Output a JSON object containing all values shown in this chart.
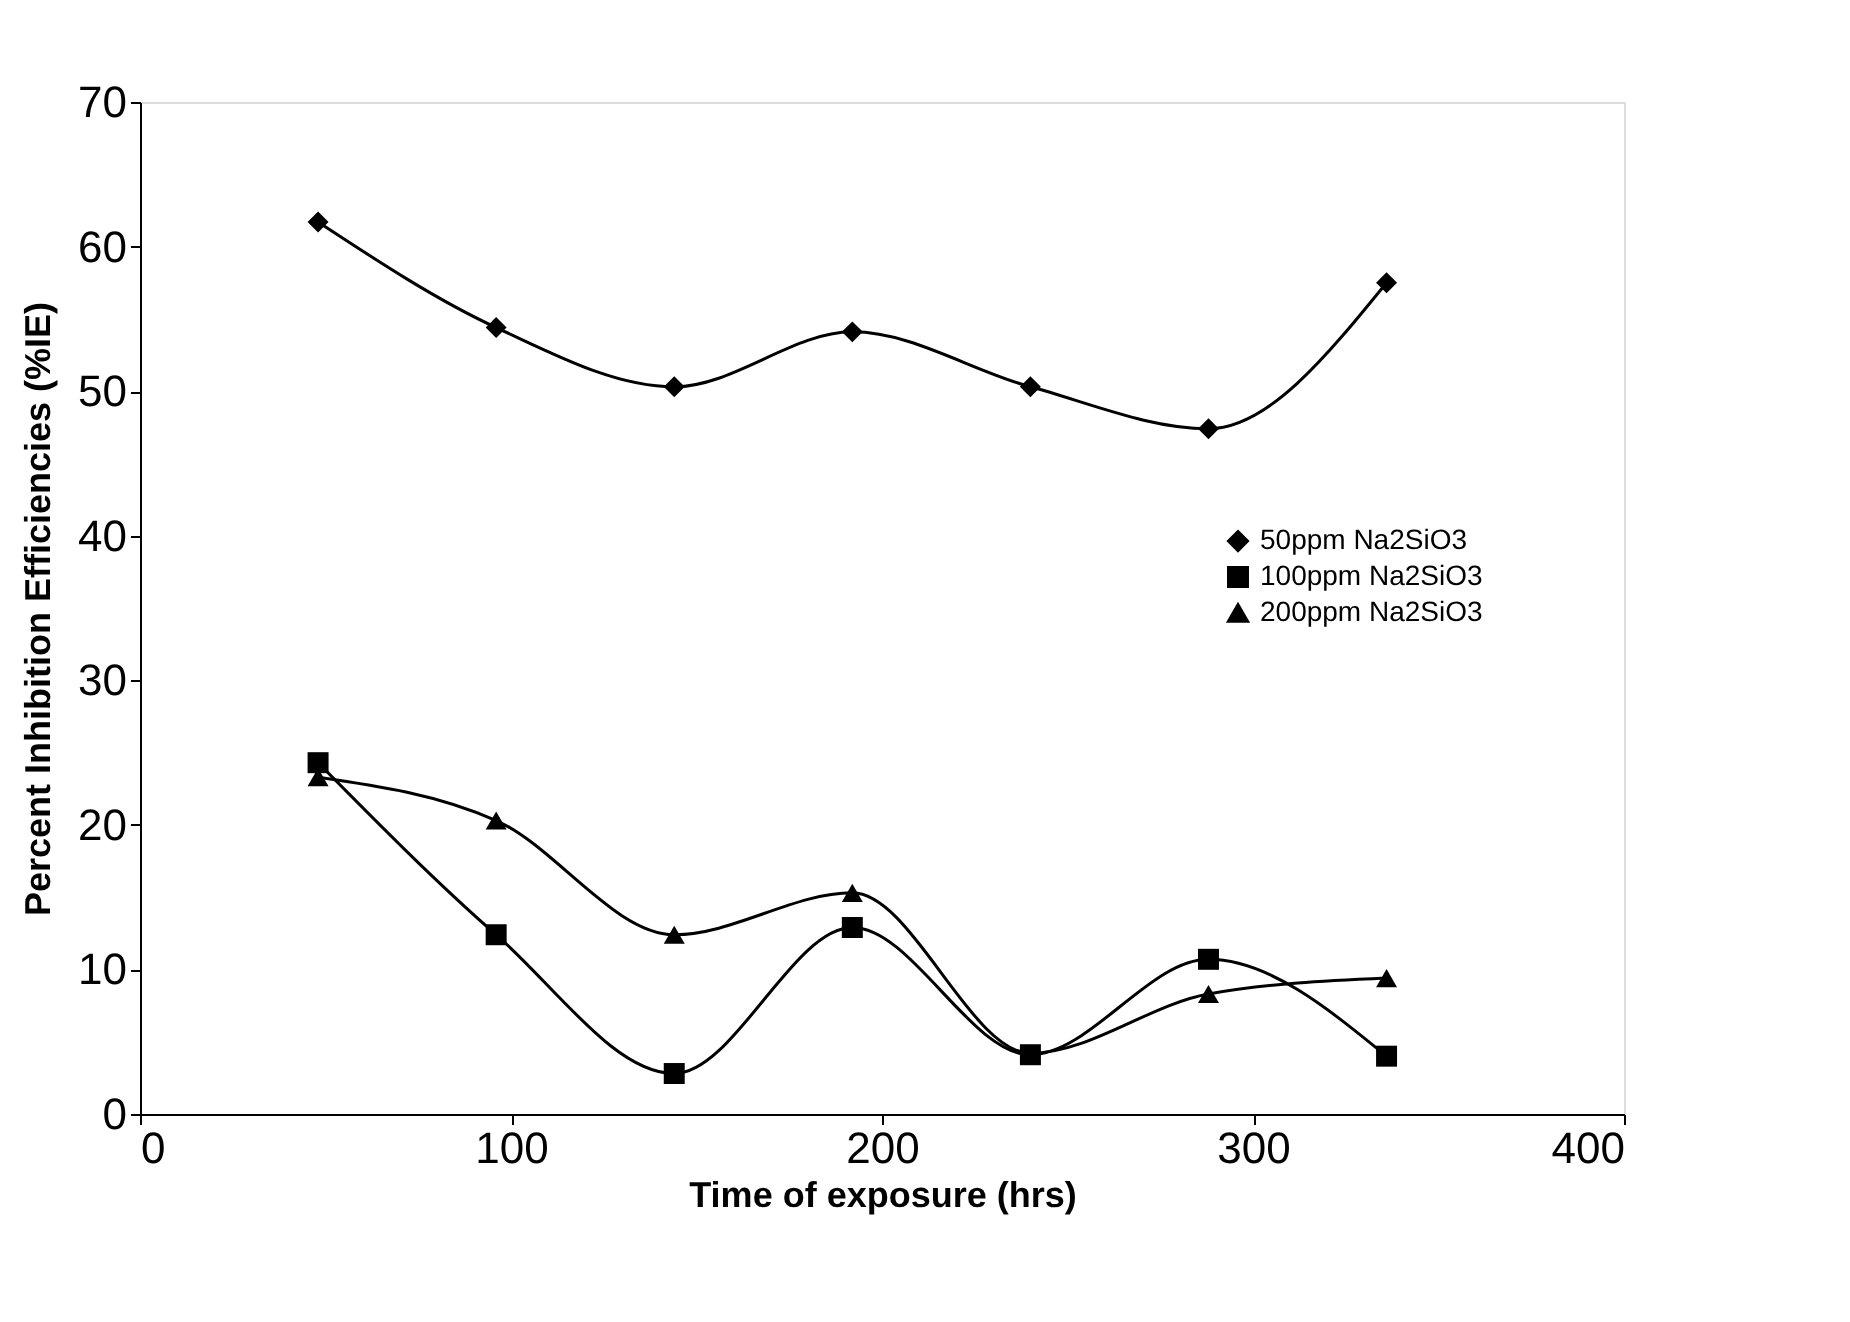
{
  "chart_data": {
    "type": "line",
    "xlabel": "Time of exposure (hrs)",
    "ylabel": "Percent Inhibition Efficiencies (%IE)",
    "x": [
      48,
      96,
      144,
      192,
      240,
      288,
      336
    ],
    "series": [
      {
        "name": "50ppm Na2SiO3",
        "color": "#000000",
        "marker": "diamond",
        "values": [
          61.7,
          54.4,
          50.3,
          54.1,
          50.3,
          47.4,
          57.5
        ]
      },
      {
        "name": "100ppm Na2SiO3",
        "color": "#000000",
        "marker": "square",
        "values": [
          24.3,
          12.4,
          2.8,
          12.9,
          4.1,
          10.7,
          4.0
        ]
      },
      {
        "name": "200ppm Na2SiO3",
        "color": "#000000",
        "marker": "triangle",
        "values": [
          23.3,
          20.3,
          12.4,
          15.3,
          4.2,
          8.3,
          9.4
        ]
      }
    ],
    "xlim": [
      0,
      400
    ],
    "xticks": [
      0,
      100,
      200,
      300,
      400
    ],
    "ylim": [
      0,
      70
    ],
    "yticks": [
      0,
      10,
      20,
      30,
      40,
      50,
      60,
      70
    ],
    "grid": false,
    "legend": "right",
    "line_style": "solid"
  }
}
